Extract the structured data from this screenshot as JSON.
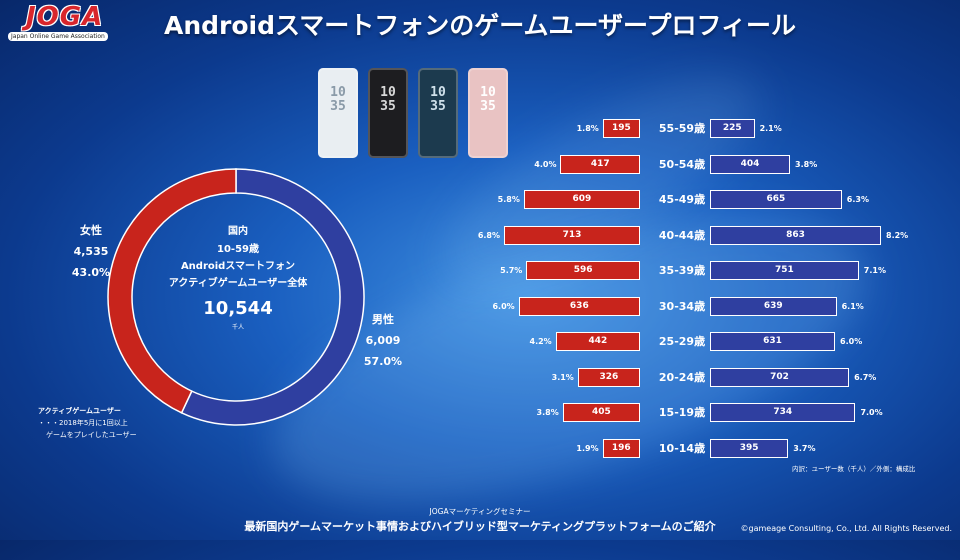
{
  "logo": {
    "text": "JOGA",
    "subtitle": "Japan Online Game Association"
  },
  "title": "Androidスマートフォンのゲームユーザープロフィール",
  "phones": [
    {
      "time": "10\n35",
      "color": "#e9eef2",
      "text_color": "#8a9aa8"
    },
    {
      "time": "10\n35",
      "color": "#1d1d20",
      "text_color": "#d8d8d8"
    },
    {
      "time": "10\n35",
      "color": "#1c3a4e",
      "text_color": "#cfe0ea"
    },
    {
      "time": "10\n35",
      "color": "#e9c3c3",
      "text_color": "#ffffff"
    }
  ],
  "donut": {
    "line1": "国内",
    "line2": "10-59歳",
    "line3": "Androidスマートフォン",
    "line4": "アクティブゲームユーザー全体",
    "total": "10,544",
    "unit": "千人",
    "female": {
      "label": "女性",
      "value": "4,535",
      "pct": "43.0%"
    },
    "male": {
      "label": "男性",
      "value": "6,009",
      "pct": "57.0%"
    }
  },
  "note": {
    "title": "アクティブゲームユーザー",
    "line1": "・・・2018年5月に1回以上",
    "line2": "ゲームをプレイしたユーザー"
  },
  "legend_note": "内訳：ユーザー数（千人）／外側：構成比",
  "footer": {
    "small": "JOGAマーケティングセミナー",
    "main": "最新国内ゲームマーケット事情およびハイブリッド型マーケティングプラットフォームのご紹介",
    "copyright": "©gameage Consulting, Co., Ltd. All Rights Reserved."
  },
  "chart_data": [
    {
      "type": "pie",
      "subtype": "donut",
      "labels": [
        "女性",
        "男性"
      ],
      "values": [
        4535,
        6009
      ],
      "percent": [
        43.0,
        57.0
      ],
      "colors": [
        "#c8241c",
        "#2f3fa0"
      ]
    },
    {
      "type": "bar",
      "orientation": "horizontal",
      "categories": [
        "55-59歳",
        "50-54歳",
        "45-49歳",
        "40-44歳",
        "35-39歳",
        "30-34歳",
        "25-29歳",
        "20-24歳",
        "15-19歳",
        "10-14歳"
      ],
      "series": [
        {
          "values": [
            195,
            417,
            609,
            713,
            596,
            636,
            442,
            326,
            405,
            196
          ],
          "percent": [
            "1.8%",
            "4.0%",
            "5.8%",
            "6.8%",
            "5.7%",
            "6.0%",
            "4.2%",
            "3.1%",
            "3.8%",
            "1.9%"
          ],
          "color": "#c8241c"
        },
        {
          "values": [
            225,
            404,
            665,
            863,
            751,
            639,
            631,
            702,
            734,
            395
          ],
          "percent": [
            "2.1%",
            "3.8%",
            "6.3%",
            "8.2%",
            "7.1%",
            "6.1%",
            "6.0%",
            "6.7%",
            "7.0%",
            "3.7%"
          ],
          "color": "#2f3fa0"
        }
      ]
    }
  ]
}
